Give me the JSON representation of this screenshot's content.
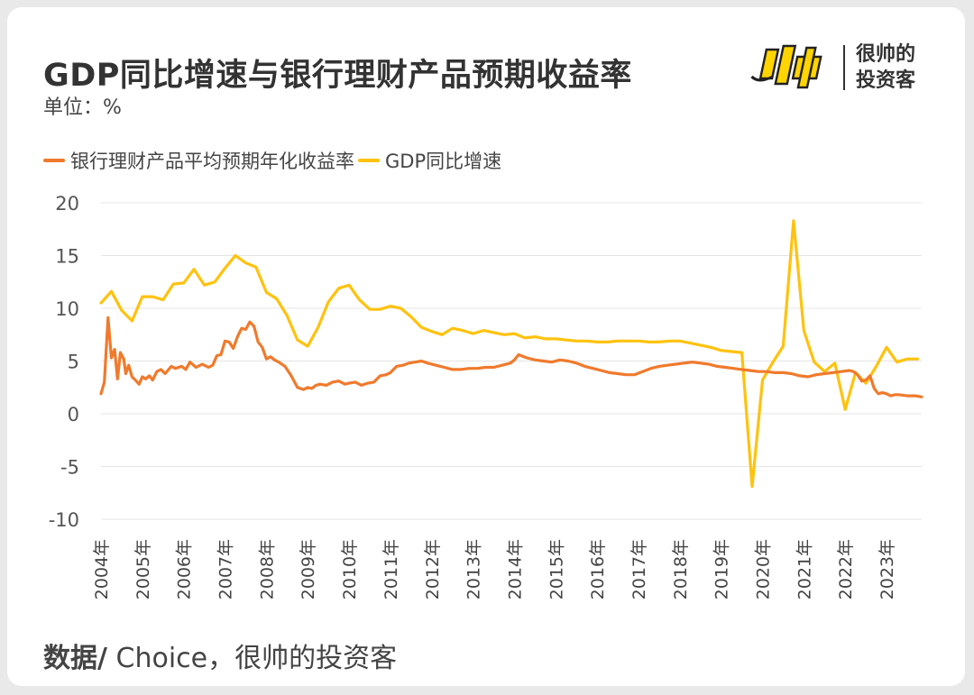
{
  "title": "GDP同比增速与银行理财产品预期收益率",
  "unit": "单位：%",
  "logo": {
    "line1": "很帅的",
    "line2": "投资客"
  },
  "source": {
    "label": "数据/",
    "text": " Choice，很帅的投资客"
  },
  "colors": {
    "bank": "#f07a2c",
    "gdp": "#ffc20e",
    "grid": "#e4e4e4"
  },
  "chart_data": {
    "type": "line",
    "title": "GDP同比增速与银行理财产品预期收益率",
    "ylabel": "单位：%",
    "ylim": [
      -10,
      20
    ],
    "yticks": [
      -10,
      -5,
      0,
      5,
      10,
      15,
      20
    ],
    "yticklabels": [
      "-10",
      "-5",
      "0",
      "5",
      "10",
      "15",
      "20"
    ],
    "xlim": [
      2004.0,
      2023.85
    ],
    "xticks": [
      2004,
      2005,
      2006,
      2007,
      2008,
      2009,
      2010,
      2011,
      2012,
      2013,
      2014,
      2015,
      2016,
      2017,
      2018,
      2019,
      2020,
      2021,
      2022,
      2023
    ],
    "xticklabels": [
      "2004年",
      "2005年",
      "2006年",
      "2007年",
      "2008年",
      "2009年",
      "2010年",
      "2011年",
      "2012年",
      "2013年",
      "2014年",
      "2015年",
      "2016年",
      "2017年",
      "2018年",
      "2019年",
      "2020年",
      "2021年",
      "2022年",
      "2023年"
    ],
    "grid": true,
    "legend_position": "top-left",
    "series": [
      {
        "name": "银行理财产品平均预期年化收益率",
        "color": "#f07a2c",
        "x": [
          2004.0,
          2004.08,
          2004.17,
          2004.25,
          2004.33,
          2004.4,
          2004.47,
          2004.55,
          2004.6,
          2004.67,
          2004.75,
          2004.83,
          2004.92,
          2005.0,
          2005.08,
          2005.17,
          2005.25,
          2005.35,
          2005.45,
          2005.55,
          2005.7,
          2005.8,
          2005.95,
          2006.05,
          2006.15,
          2006.3,
          2006.45,
          2006.6,
          2006.7,
          2006.8,
          2006.9,
          2007.0,
          2007.1,
          2007.2,
          2007.3,
          2007.4,
          2007.5,
          2007.6,
          2007.7,
          2007.8,
          2007.9,
          2008.0,
          2008.1,
          2008.2,
          2008.3,
          2008.45,
          2008.6,
          2008.75,
          2008.9,
          2009.0,
          2009.1,
          2009.2,
          2009.3,
          2009.45,
          2009.6,
          2009.75,
          2009.9,
          2010.0,
          2010.15,
          2010.3,
          2010.45,
          2010.6,
          2010.75,
          2010.9,
          2011.0,
          2011.15,
          2011.3,
          2011.45,
          2011.6,
          2011.75,
          2011.9,
          2012.1,
          2012.3,
          2012.5,
          2012.7,
          2012.9,
          2013.1,
          2013.3,
          2013.5,
          2013.7,
          2013.9,
          2014.0,
          2014.1,
          2014.3,
          2014.5,
          2014.7,
          2014.9,
          2015.1,
          2015.3,
          2015.5,
          2015.7,
          2015.9,
          2016.1,
          2016.3,
          2016.5,
          2016.7,
          2016.9,
          2017.1,
          2017.3,
          2017.5,
          2017.7,
          2017.9,
          2018.1,
          2018.3,
          2018.5,
          2018.7,
          2018.9,
          2019.1,
          2019.3,
          2019.5,
          2019.7,
          2019.9,
          2020.1,
          2020.3,
          2020.5,
          2020.7,
          2020.9,
          2021.1,
          2021.3,
          2021.5,
          2021.7,
          2021.9,
          2022.1,
          2022.2,
          2022.3,
          2022.4,
          2022.5,
          2022.6,
          2022.7,
          2022.8,
          2022.9,
          2023.0,
          2023.1,
          2023.2,
          2023.3,
          2023.5,
          2023.7,
          2023.85
        ],
        "values": [
          1.9,
          3.0,
          9.1,
          5.3,
          6.1,
          3.3,
          5.8,
          5.2,
          3.8,
          4.6,
          3.5,
          3.2,
          2.8,
          3.5,
          3.3,
          3.6,
          3.2,
          4.0,
          4.2,
          3.8,
          4.5,
          4.3,
          4.5,
          4.2,
          4.9,
          4.4,
          4.7,
          4.4,
          4.6,
          5.5,
          5.6,
          6.9,
          6.8,
          6.2,
          7.3,
          8.1,
          8.0,
          8.7,
          8.3,
          6.8,
          6.3,
          5.2,
          5.4,
          5.1,
          4.9,
          4.5,
          3.6,
          2.5,
          2.3,
          2.5,
          2.4,
          2.7,
          2.8,
          2.7,
          3.0,
          3.1,
          2.8,
          2.9,
          3.0,
          2.7,
          2.9,
          3.0,
          3.6,
          3.7,
          3.9,
          4.5,
          4.6,
          4.8,
          4.9,
          5.0,
          4.8,
          4.6,
          4.4,
          4.2,
          4.2,
          4.3,
          4.3,
          4.4,
          4.4,
          4.6,
          4.8,
          5.1,
          5.6,
          5.3,
          5.1,
          5.0,
          4.9,
          5.1,
          5.0,
          4.8,
          4.5,
          4.3,
          4.1,
          3.9,
          3.8,
          3.7,
          3.7,
          4.0,
          4.3,
          4.5,
          4.6,
          4.7,
          4.8,
          4.9,
          4.8,
          4.7,
          4.5,
          4.4,
          4.3,
          4.2,
          4.1,
          4.0,
          4.0,
          3.9,
          3.9,
          3.8,
          3.6,
          3.5,
          3.7,
          3.8,
          3.9,
          4.0,
          4.1,
          4.0,
          3.7,
          3.1,
          3.2,
          3.6,
          2.4,
          1.9,
          2.0,
          1.9,
          1.7,
          1.8,
          1.8,
          1.7,
          1.7,
          1.6
        ]
      },
      {
        "name": "GDP同比增速",
        "color": "#ffc20e",
        "x": [
          2004.0,
          2004.25,
          2004.5,
          2004.75,
          2005.0,
          2005.25,
          2005.5,
          2005.75,
          2006.0,
          2006.25,
          2006.5,
          2006.75,
          2007.0,
          2007.25,
          2007.5,
          2007.75,
          2008.0,
          2008.25,
          2008.5,
          2008.75,
          2009.0,
          2009.25,
          2009.5,
          2009.75,
          2010.0,
          2010.25,
          2010.5,
          2010.75,
          2011.0,
          2011.25,
          2011.5,
          2011.75,
          2012.0,
          2012.25,
          2012.5,
          2012.75,
          2013.0,
          2013.25,
          2013.5,
          2013.75,
          2014.0,
          2014.25,
          2014.5,
          2014.75,
          2015.0,
          2015.25,
          2015.5,
          2015.75,
          2016.0,
          2016.25,
          2016.5,
          2016.75,
          2017.0,
          2017.25,
          2017.5,
          2017.75,
          2018.0,
          2018.25,
          2018.5,
          2018.75,
          2019.0,
          2019.25,
          2019.5,
          2019.75,
          2020.0,
          2020.25,
          2020.5,
          2020.75,
          2021.0,
          2021.25,
          2021.5,
          2021.75,
          2022.0,
          2022.25,
          2022.5,
          2022.75,
          2023.0,
          2023.25,
          2023.5,
          2023.75
        ],
        "values": [
          10.5,
          11.6,
          9.8,
          8.8,
          11.1,
          11.1,
          10.8,
          12.3,
          12.4,
          13.7,
          12.2,
          12.5,
          13.8,
          15.0,
          14.3,
          13.9,
          11.5,
          10.9,
          9.3,
          7.0,
          6.4,
          8.2,
          10.6,
          11.9,
          12.2,
          10.8,
          9.9,
          9.9,
          10.2,
          10.0,
          9.2,
          8.2,
          7.8,
          7.5,
          8.1,
          7.9,
          7.6,
          7.9,
          7.7,
          7.5,
          7.6,
          7.2,
          7.3,
          7.1,
          7.1,
          7.0,
          6.9,
          6.9,
          6.8,
          6.8,
          6.9,
          6.9,
          6.9,
          6.8,
          6.8,
          6.9,
          6.9,
          6.7,
          6.5,
          6.3,
          6.0,
          5.9,
          5.8,
          -6.9,
          3.2,
          4.9,
          6.4,
          18.3,
          7.9,
          4.9,
          4.0,
          4.8,
          0.4,
          3.9,
          2.9,
          4.5,
          6.3,
          4.9,
          5.2,
          5.2
        ]
      }
    ]
  }
}
